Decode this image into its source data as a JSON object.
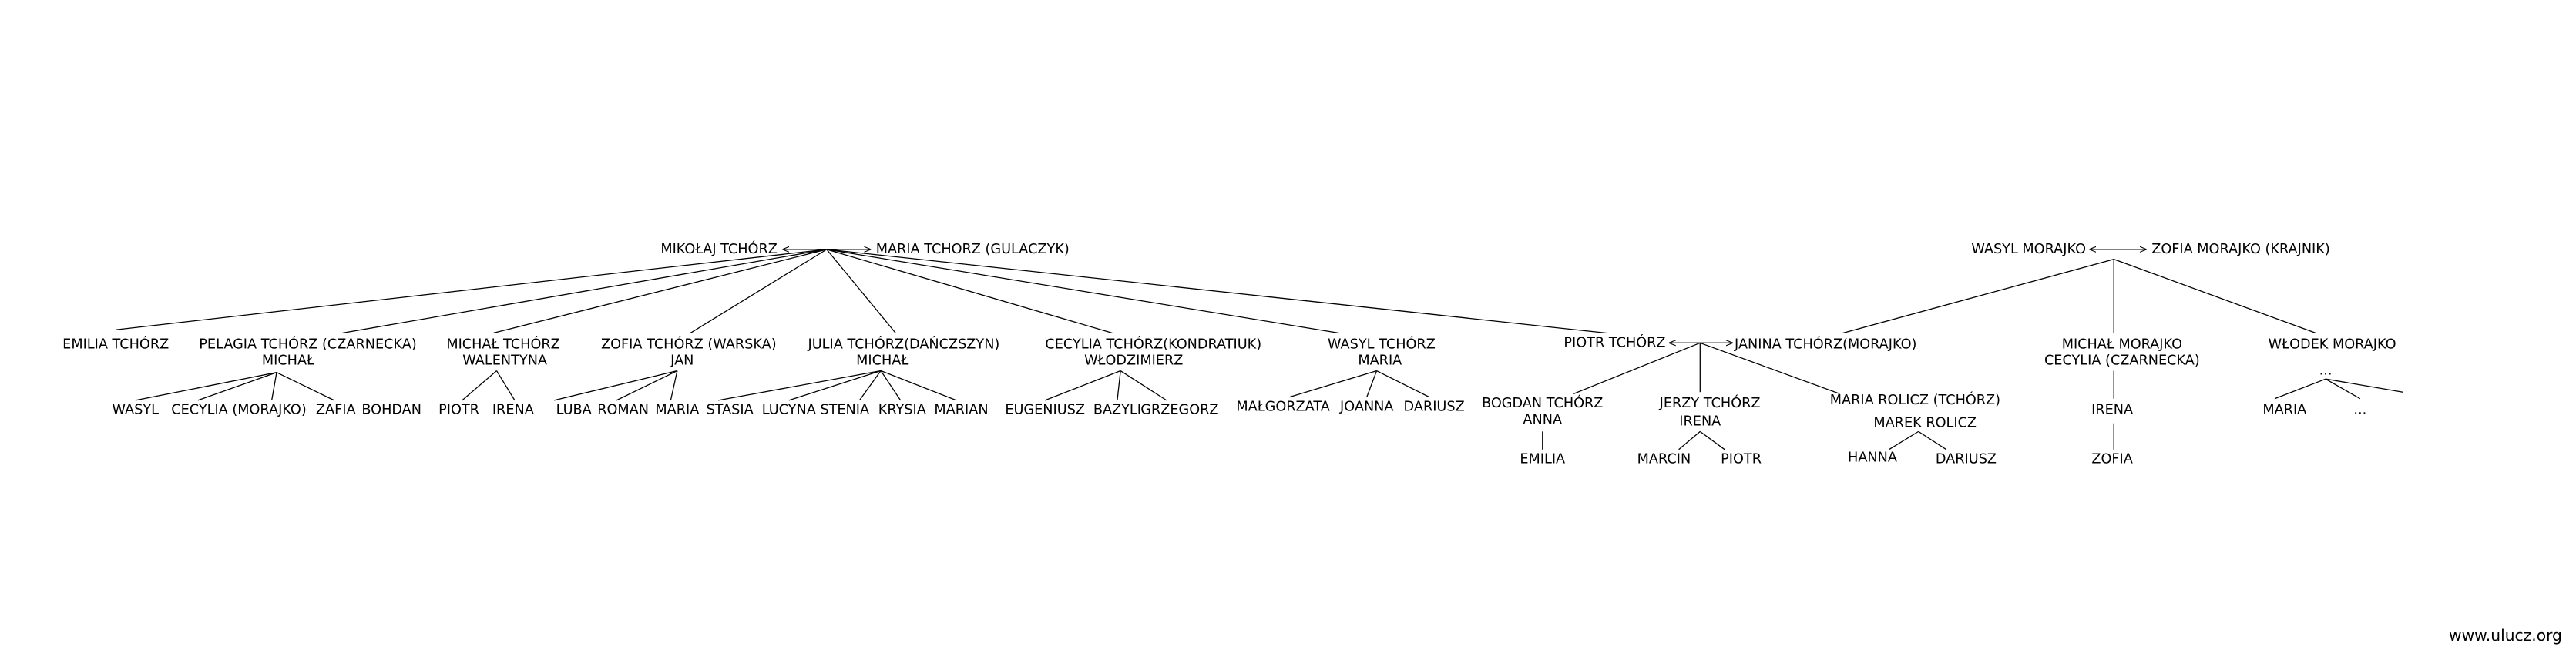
{
  "trees": [
    {
      "parents": [
        "MIKOŁAJ TCHÓRZ",
        "MARIA TCHORZ (GULACZYK)"
      ],
      "children": [
        {
          "name": "EMILIA TCHÓRZ"
        },
        {
          "name": "PELAGIA TCHÓRZ (CZARNECKA)",
          "spouse": "MICHAŁ",
          "children": [
            "WASYL",
            "CECYLIA (MORAJKO)",
            "ZAFIA",
            "BOHDAN"
          ]
        },
        {
          "name": "MICHAŁ TCHÓRZ",
          "spouse": "WALENTYNA",
          "children": [
            "PIOTR",
            "IRENA"
          ]
        },
        {
          "name": "ZOFIA TCHÓRZ (WARSKA)",
          "spouse": "JAN",
          "children": [
            "LUBA",
            "ROMAN",
            "MARIA",
            "STASIA"
          ]
        },
        {
          "name": "JULIA TCHÓRZ(DAŃCZSZYN)",
          "spouse": "MICHAŁ",
          "children": [
            "LUCYNA",
            "STENIA",
            "KRYSIA",
            "MARIAN"
          ]
        },
        {
          "name": "CECYLIA TCHÓRZ(KONDRATIUK)",
          "spouse": "WŁODZIMIERZ",
          "children": [
            "EUGENIUSZ",
            "BAZYLI",
            "GRZEGORZ"
          ]
        },
        {
          "name": "WASYL TCHÓRZ",
          "spouse": "MARIA",
          "children": [
            "MAŁGORZATA",
            "JOANNA",
            "DARIUSZ"
          ]
        },
        {
          "name": "PIOTR TCHÓRZ",
          "spouse": "JANINA TCHÓRZ(MORAJKO)",
          "children": [
            {
              "name": "BOGDAN TCHÓRZ",
              "spouse": "ANNA",
              "children": [
                "EMILIA"
              ]
            },
            {
              "name": "JERZY TCHÓRZ",
              "spouse": "IRENA",
              "children": [
                "MARCIN",
                "PIOTR"
              ]
            },
            {
              "name": "MARIA ROLICZ (TCHÓRZ)",
              "spouse": "MAREK ROLICZ",
              "children": [
                "HANNA",
                "DARIUSZ"
              ]
            }
          ]
        }
      ]
    },
    {
      "parents": [
        "WASYL MORAJKO",
        "ZOFIA MORAJKO (KRAJNIK)"
      ],
      "children": [
        {
          "name": "MICHAŁ MORAJKO",
          "spouse": "CECYLIA (CZARNECKA)",
          "children": [
            {
              "name": "IRENA",
              "children": [
                "ZOFIA"
              ]
            }
          ]
        },
        {
          "name": "WŁODEK MORAJKO",
          "spouse": "...",
          "children": [
            "MARIA",
            "..."
          ]
        }
      ]
    }
  ],
  "footer": "www.ulucz.org"
}
